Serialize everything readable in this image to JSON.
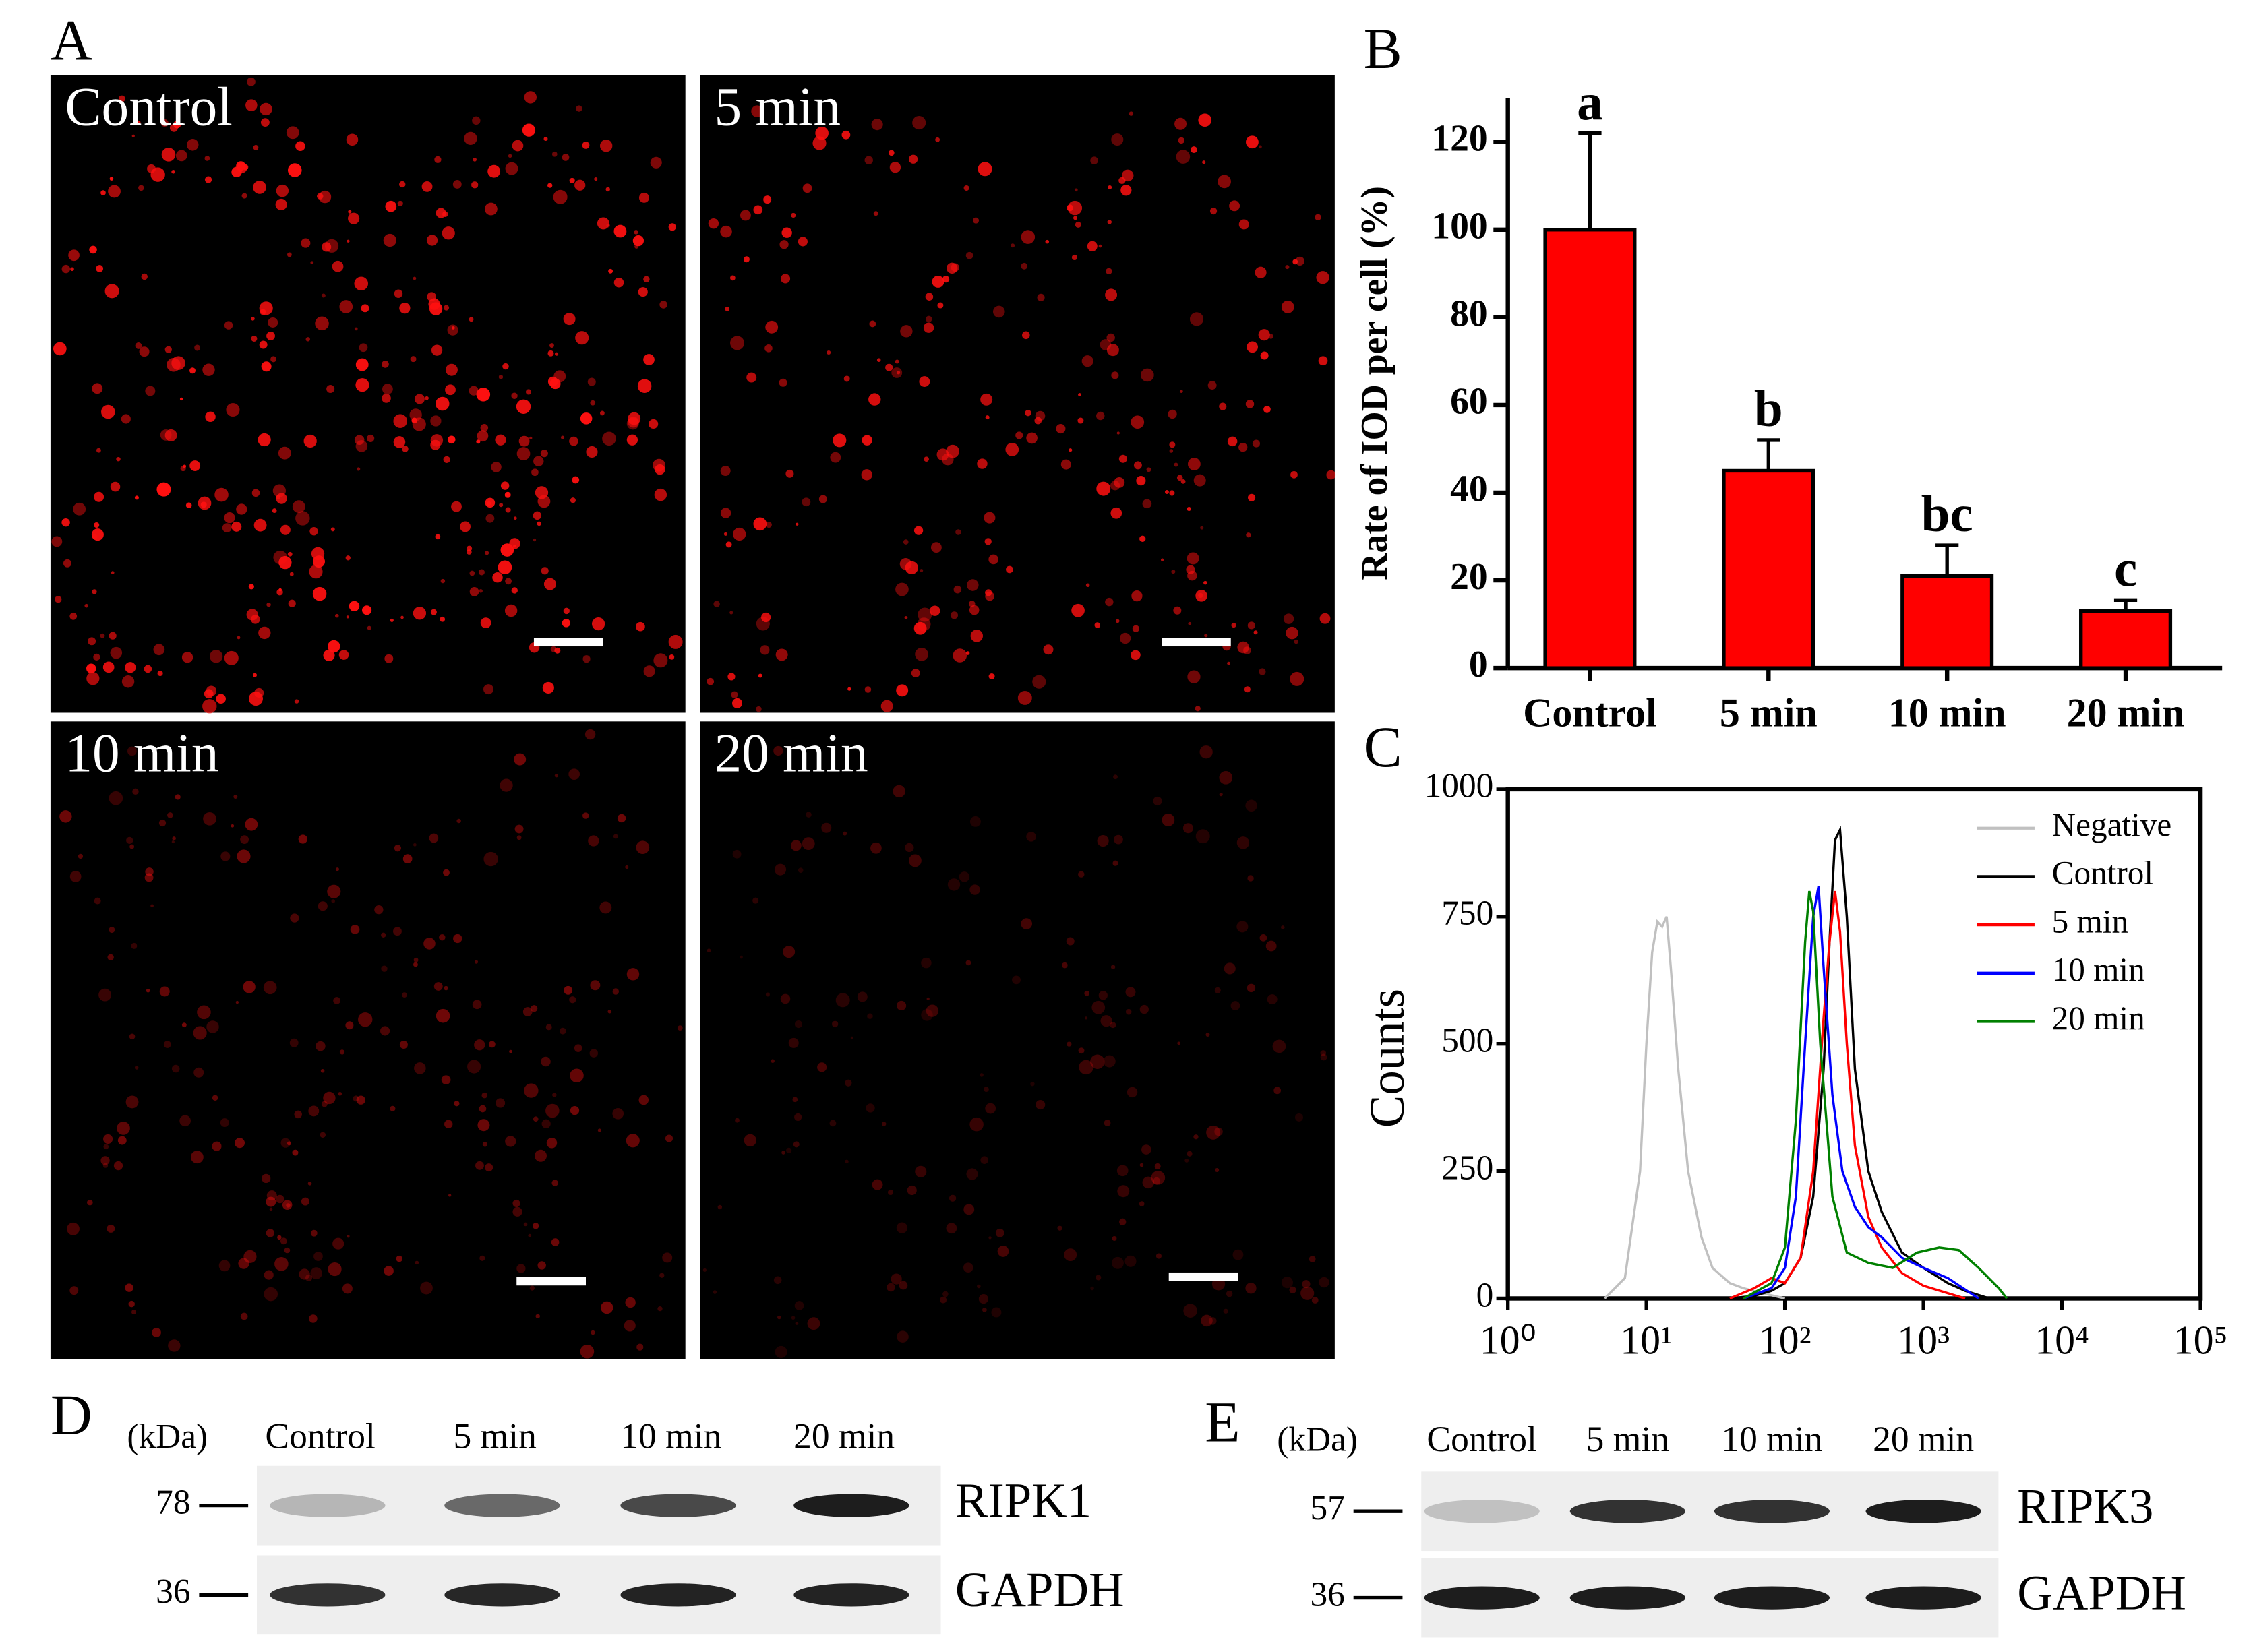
{
  "microscopy": {
    "label": "A",
    "images": [
      "Control",
      "5 min",
      "10 min",
      "20 min"
    ]
  },
  "chart_data": [
    {
      "type": "bar",
      "panel_label": "B",
      "ylabel": "Rate of IOD per cell (%)",
      "categories": [
        "Control",
        "5 min",
        "10 min",
        "20 min"
      ],
      "values": [
        100,
        45,
        21,
        13
      ],
      "errors": [
        22,
        7,
        7,
        2.5
      ],
      "annotations": [
        "a",
        "b",
        "bc",
        "c"
      ],
      "color": "#ff0000",
      "ylim": [
        0,
        130
      ],
      "yticks": [
        0,
        20,
        40,
        60,
        80,
        100,
        120
      ]
    },
    {
      "type": "line",
      "panel_label": "C",
      "ylabel": "Counts",
      "xscale": "log",
      "xlim": [
        1,
        100000
      ],
      "xticks": [
        {
          "value": 1,
          "label": "10⁰"
        },
        {
          "value": 10,
          "label": "10¹"
        },
        {
          "value": 100,
          "label": "10²"
        },
        {
          "value": 1000,
          "label": "10³"
        },
        {
          "value": 10000,
          "label": "10⁴"
        },
        {
          "value": 100000,
          "label": "10⁵"
        }
      ],
      "ylim": [
        0,
        1000
      ],
      "yticks": [
        0,
        250,
        500,
        750,
        1000
      ],
      "legend": "upper right",
      "series": [
        {
          "name": "Negative",
          "color": "#c0c0c0",
          "x": [
            5,
            7,
            9,
            10,
            11,
            12,
            13,
            14,
            15,
            17,
            20,
            25,
            30,
            40,
            50,
            70,
            100
          ],
          "values": [
            0,
            40,
            250,
            500,
            680,
            740,
            730,
            750,
            650,
            450,
            250,
            120,
            60,
            30,
            20,
            10,
            0
          ]
        },
        {
          "name": "Control",
          "color": "#000000",
          "x": [
            40,
            60,
            80,
            100,
            130,
            160,
            190,
            210,
            230,
            250,
            280,
            320,
            400,
            500,
            700,
            1000,
            1500,
            2000,
            3000
          ],
          "values": [
            0,
            5,
            15,
            30,
            80,
            200,
            450,
            700,
            900,
            920,
            750,
            450,
            250,
            170,
            90,
            60,
            30,
            15,
            0
          ]
        },
        {
          "name": "5 min",
          "color": "#ff0000",
          "x": [
            40,
            60,
            80,
            100,
            130,
            160,
            190,
            210,
            230,
            250,
            280,
            320,
            400,
            500,
            700,
            1000,
            2000
          ],
          "values": [
            0,
            20,
            40,
            30,
            80,
            250,
            550,
            700,
            800,
            720,
            500,
            300,
            160,
            100,
            50,
            25,
            0
          ]
        },
        {
          "name": "10 min",
          "color": "#0000ff",
          "x": [
            50,
            80,
            100,
            120,
            140,
            160,
            175,
            190,
            220,
            260,
            320,
            400,
            500,
            700,
            1000,
            1500,
            2500
          ],
          "values": [
            0,
            20,
            60,
            200,
            500,
            750,
            810,
            650,
            400,
            250,
            180,
            140,
            120,
            80,
            60,
            40,
            0
          ]
        },
        {
          "name": "20 min",
          "color": "#008000",
          "x": [
            50,
            80,
            100,
            120,
            140,
            150,
            160,
            180,
            220,
            280,
            400,
            600,
            900,
            1300,
            1800,
            2500,
            3500,
            4000
          ],
          "values": [
            0,
            30,
            100,
            350,
            700,
            800,
            760,
            500,
            200,
            90,
            70,
            60,
            90,
            100,
            95,
            60,
            20,
            0
          ]
        }
      ]
    }
  ],
  "western_blots": [
    {
      "label": "D",
      "unit": "(kDa)",
      "lanes": [
        "Control",
        "5 min",
        "10 min",
        "20 min"
      ],
      "rows": [
        {
          "marker": 78,
          "protein": "RIPK1"
        },
        {
          "marker": 36,
          "protein": "GAPDH"
        }
      ]
    },
    {
      "label": "E",
      "unit": "(kDa)",
      "lanes": [
        "Control",
        "5 min",
        "10 min",
        "20 min"
      ],
      "rows": [
        {
          "marker": 57,
          "protein": "RIPK3"
        },
        {
          "marker": 36,
          "protein": "GAPDH"
        }
      ]
    }
  ]
}
